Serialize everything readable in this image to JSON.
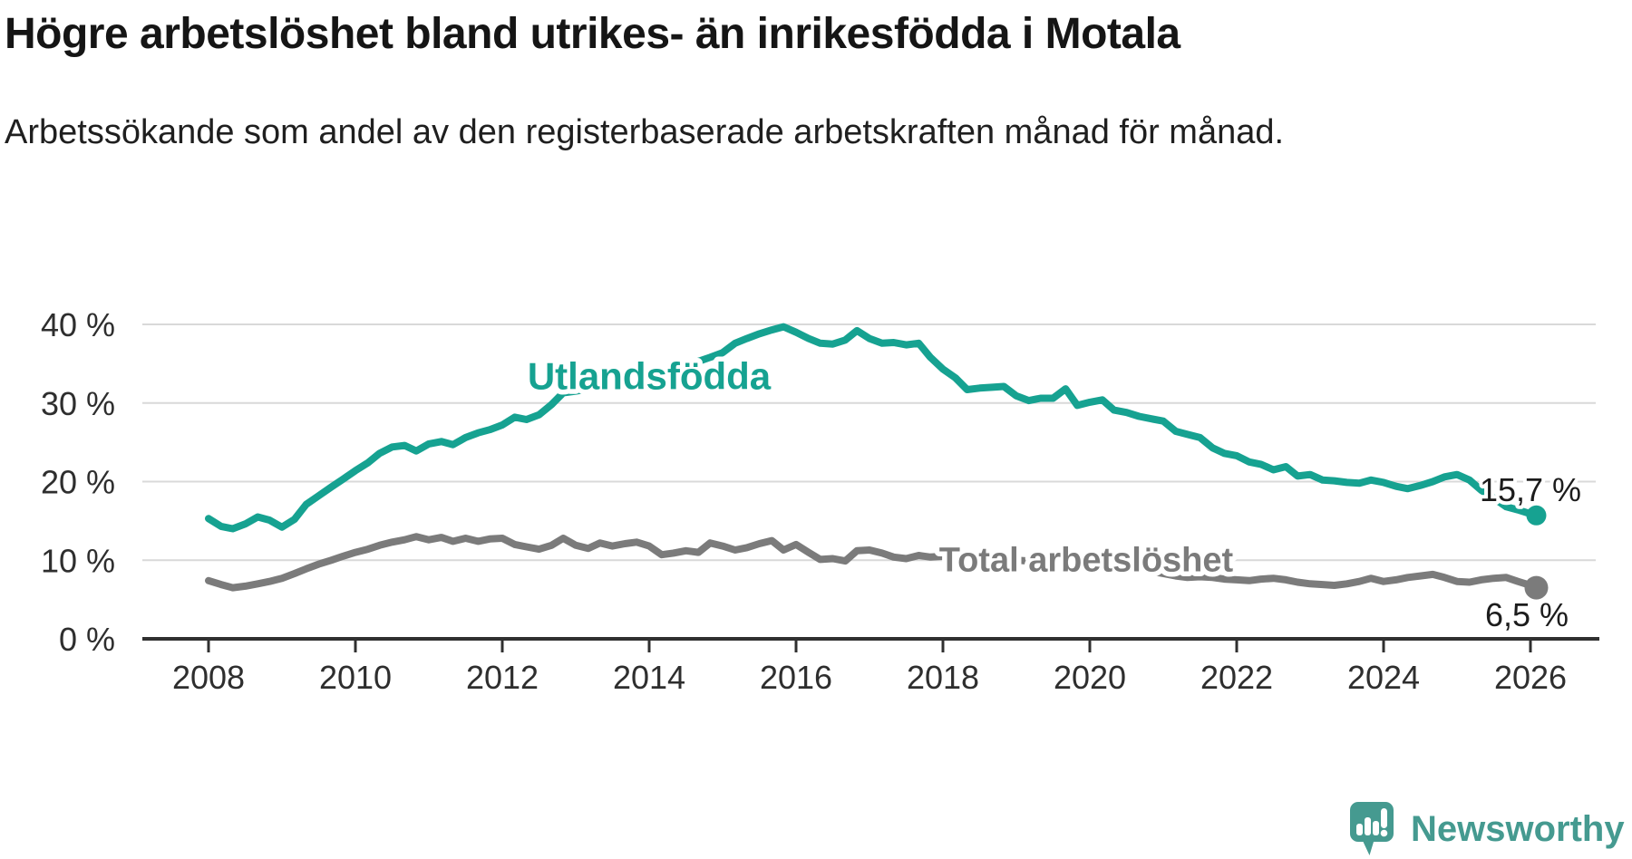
{
  "header": {
    "title": "Högre arbetslöshet bland utrikes- än inrikesfödda i Motala",
    "subtitle": "Arbetssökande som andel av den registerbaserade arbetskraften månad för månad."
  },
  "branding": {
    "logo_text": "Newsworthy",
    "logo_icon": "newsworthy-speech-bubble-bar-chart-icon",
    "logo_color": "#459a90"
  },
  "colors": {
    "background": "#ffffff",
    "title_text": "#151515",
    "axis_text": "#2e2e2e",
    "axis_line": "#303030",
    "gridline": "#d9d9d9",
    "series_foreign_born": "#16a291",
    "series_total": "#7b7b7b",
    "end_label_text": "#1c1c1c",
    "label_halo": "#ffffff"
  },
  "chart_data": {
    "type": "line",
    "title": "Högre arbetslöshet bland utrikes- än inrikesfödda i Motala",
    "subtitle": "Arbetssökande som andel av den registerbaserade arbetskraften månad för månad.",
    "grid": "horizontal",
    "legend_position": "inline-line-labels",
    "x_axis": {
      "ticks": [
        2008,
        2010,
        2012,
        2014,
        2016,
        2018,
        2020,
        2022,
        2024,
        2026
      ],
      "tick_labels": [
        "2008",
        "2010",
        "2012",
        "2014",
        "2016",
        "2018",
        "2020",
        "2022",
        "2024",
        "2026"
      ],
      "range": [
        2007.1,
        2026.9
      ]
    },
    "y_axis": {
      "tick_values": [
        0,
        10,
        20,
        30,
        40
      ],
      "tick_labels": [
        "0 %",
        "10 %",
        "20 %",
        "30 %",
        "40 %"
      ],
      "range": [
        0,
        40
      ],
      "unit": "%"
    },
    "series": [
      {
        "name": "Utlandsfödda",
        "color": "#16a291",
        "line_label": {
          "text": "Utlandsfödda",
          "x_year": 2014.0,
          "y_pct": 33.4
        },
        "end_label": {
          "text": "15,7 %",
          "value": 15.7
        },
        "points": [
          [
            2008.0,
            15.3
          ],
          [
            2008.17,
            14.3
          ],
          [
            2008.33,
            14.0
          ],
          [
            2008.5,
            14.6
          ],
          [
            2008.67,
            15.5
          ],
          [
            2008.83,
            15.1
          ],
          [
            2009.0,
            14.2
          ],
          [
            2009.17,
            15.2
          ],
          [
            2009.33,
            17.1
          ],
          [
            2009.5,
            18.2
          ],
          [
            2009.67,
            19.3
          ],
          [
            2009.83,
            20.3
          ],
          [
            2010.0,
            21.4
          ],
          [
            2010.17,
            22.4
          ],
          [
            2010.33,
            23.6
          ],
          [
            2010.5,
            24.4
          ],
          [
            2010.67,
            24.6
          ],
          [
            2010.83,
            23.9
          ],
          [
            2011.0,
            24.8
          ],
          [
            2011.17,
            25.1
          ],
          [
            2011.33,
            24.7
          ],
          [
            2011.5,
            25.6
          ],
          [
            2011.67,
            26.2
          ],
          [
            2011.83,
            26.6
          ],
          [
            2012.0,
            27.2
          ],
          [
            2012.17,
            28.2
          ],
          [
            2012.33,
            27.9
          ],
          [
            2012.5,
            28.5
          ],
          [
            2012.67,
            29.8
          ],
          [
            2012.83,
            31.3
          ],
          [
            2013.0,
            31.5
          ],
          [
            2013.17,
            31.8
          ],
          [
            2013.33,
            32.0
          ],
          [
            2013.5,
            32.4
          ],
          [
            2013.67,
            32.9
          ],
          [
            2013.83,
            33.3
          ],
          [
            2014.0,
            33.7
          ],
          [
            2014.17,
            34.0
          ],
          [
            2014.33,
            34.5
          ],
          [
            2014.5,
            34.9
          ],
          [
            2014.67,
            35.3
          ],
          [
            2014.83,
            35.8
          ],
          [
            2015.0,
            36.4
          ],
          [
            2015.17,
            37.6
          ],
          [
            2015.33,
            38.2
          ],
          [
            2015.5,
            38.8
          ],
          [
            2015.67,
            39.3
          ],
          [
            2015.83,
            39.7
          ],
          [
            2016.0,
            39.0
          ],
          [
            2016.17,
            38.2
          ],
          [
            2016.33,
            37.6
          ],
          [
            2016.5,
            37.5
          ],
          [
            2016.67,
            38.0
          ],
          [
            2016.83,
            39.2
          ],
          [
            2017.0,
            38.2
          ],
          [
            2017.17,
            37.6
          ],
          [
            2017.33,
            37.7
          ],
          [
            2017.5,
            37.4
          ],
          [
            2017.67,
            37.6
          ],
          [
            2017.83,
            35.8
          ],
          [
            2018.0,
            34.3
          ],
          [
            2018.17,
            33.2
          ],
          [
            2018.33,
            31.7
          ],
          [
            2018.5,
            31.9
          ],
          [
            2018.67,
            32.0
          ],
          [
            2018.83,
            32.1
          ],
          [
            2019.0,
            30.9
          ],
          [
            2019.17,
            30.3
          ],
          [
            2019.33,
            30.6
          ],
          [
            2019.5,
            30.6
          ],
          [
            2019.67,
            31.8
          ],
          [
            2019.83,
            29.7
          ],
          [
            2020.0,
            30.1
          ],
          [
            2020.17,
            30.4
          ],
          [
            2020.33,
            29.1
          ],
          [
            2020.5,
            28.8
          ],
          [
            2020.67,
            28.3
          ],
          [
            2020.83,
            28.0
          ],
          [
            2021.0,
            27.7
          ],
          [
            2021.17,
            26.4
          ],
          [
            2021.33,
            26.0
          ],
          [
            2021.5,
            25.6
          ],
          [
            2021.67,
            24.3
          ],
          [
            2021.83,
            23.6
          ],
          [
            2022.0,
            23.3
          ],
          [
            2022.17,
            22.5
          ],
          [
            2022.33,
            22.2
          ],
          [
            2022.5,
            21.5
          ],
          [
            2022.67,
            21.9
          ],
          [
            2022.83,
            20.7
          ],
          [
            2023.0,
            20.9
          ],
          [
            2023.17,
            20.2
          ],
          [
            2023.33,
            20.1
          ],
          [
            2023.5,
            19.9
          ],
          [
            2023.67,
            19.8
          ],
          [
            2023.83,
            20.2
          ],
          [
            2024.0,
            19.9
          ],
          [
            2024.17,
            19.4
          ],
          [
            2024.33,
            19.1
          ],
          [
            2024.5,
            19.5
          ],
          [
            2024.67,
            20.0
          ],
          [
            2024.83,
            20.6
          ],
          [
            2025.0,
            20.9
          ],
          [
            2025.17,
            20.2
          ],
          [
            2025.33,
            18.9
          ],
          [
            2025.5,
            17.9
          ],
          [
            2025.67,
            16.8
          ],
          [
            2025.83,
            16.4
          ],
          [
            2026.0,
            15.9
          ],
          [
            2026.08,
            15.7
          ]
        ]
      },
      {
        "name": "Total arbetslöshet",
        "color": "#7b7b7b",
        "line_label": {
          "text": "Total arbetslöshet",
          "x_year": 2019.95,
          "y_pct": 10.1
        },
        "end_label": {
          "text": "6,5 %",
          "value": 6.5
        },
        "points": [
          [
            2008.0,
            7.4
          ],
          [
            2008.17,
            6.9
          ],
          [
            2008.33,
            6.5
          ],
          [
            2008.5,
            6.7
          ],
          [
            2008.67,
            7.0
          ],
          [
            2008.83,
            7.3
          ],
          [
            2009.0,
            7.7
          ],
          [
            2009.17,
            8.3
          ],
          [
            2009.33,
            8.9
          ],
          [
            2009.5,
            9.5
          ],
          [
            2009.67,
            10.0
          ],
          [
            2009.83,
            10.5
          ],
          [
            2010.0,
            11.0
          ],
          [
            2010.17,
            11.4
          ],
          [
            2010.33,
            11.9
          ],
          [
            2010.5,
            12.3
          ],
          [
            2010.67,
            12.6
          ],
          [
            2010.83,
            13.0
          ],
          [
            2011.0,
            12.6
          ],
          [
            2011.17,
            12.9
          ],
          [
            2011.33,
            12.4
          ],
          [
            2011.5,
            12.8
          ],
          [
            2011.67,
            12.4
          ],
          [
            2011.83,
            12.7
          ],
          [
            2012.0,
            12.8
          ],
          [
            2012.17,
            12.0
          ],
          [
            2012.33,
            11.7
          ],
          [
            2012.5,
            11.4
          ],
          [
            2012.67,
            11.9
          ],
          [
            2012.83,
            12.8
          ],
          [
            2013.0,
            11.9
          ],
          [
            2013.17,
            11.5
          ],
          [
            2013.33,
            12.2
          ],
          [
            2013.5,
            11.8
          ],
          [
            2013.67,
            12.1
          ],
          [
            2013.83,
            12.3
          ],
          [
            2014.0,
            11.8
          ],
          [
            2014.17,
            10.7
          ],
          [
            2014.33,
            10.9
          ],
          [
            2014.5,
            11.2
          ],
          [
            2014.67,
            11.0
          ],
          [
            2014.83,
            12.2
          ],
          [
            2015.0,
            11.8
          ],
          [
            2015.17,
            11.3
          ],
          [
            2015.33,
            11.6
          ],
          [
            2015.5,
            12.1
          ],
          [
            2015.67,
            12.5
          ],
          [
            2015.83,
            11.3
          ],
          [
            2016.0,
            12.0
          ],
          [
            2016.17,
            11.0
          ],
          [
            2016.33,
            10.1
          ],
          [
            2016.5,
            10.2
          ],
          [
            2016.67,
            9.9
          ],
          [
            2016.83,
            11.2
          ],
          [
            2017.0,
            11.3
          ],
          [
            2017.17,
            10.9
          ],
          [
            2017.33,
            10.4
          ],
          [
            2017.5,
            10.2
          ],
          [
            2017.67,
            10.6
          ],
          [
            2017.83,
            10.4
          ],
          [
            2018.0,
            10.5
          ],
          [
            2018.17,
            10.6
          ],
          [
            2018.33,
            10.3
          ],
          [
            2018.5,
            10.2
          ],
          [
            2018.67,
            10.4
          ],
          [
            2018.83,
            10.2
          ],
          [
            2019.0,
            10.0
          ],
          [
            2019.17,
            9.9
          ],
          [
            2019.33,
            10.1
          ],
          [
            2019.5,
            9.8
          ],
          [
            2019.67,
            9.6
          ],
          [
            2019.83,
            9.7
          ],
          [
            2020.0,
            9.8
          ],
          [
            2020.17,
            10.0
          ],
          [
            2020.33,
            9.6
          ],
          [
            2020.5,
            9.3
          ],
          [
            2020.67,
            8.9
          ],
          [
            2020.83,
            8.6
          ],
          [
            2021.0,
            8.3
          ],
          [
            2021.17,
            8.0
          ],
          [
            2021.33,
            7.8
          ],
          [
            2021.5,
            7.9
          ],
          [
            2021.67,
            7.8
          ],
          [
            2021.83,
            7.6
          ],
          [
            2022.0,
            7.5
          ],
          [
            2022.17,
            7.4
          ],
          [
            2022.33,
            7.6
          ],
          [
            2022.5,
            7.7
          ],
          [
            2022.67,
            7.5
          ],
          [
            2022.83,
            7.2
          ],
          [
            2023.0,
            7.0
          ],
          [
            2023.17,
            6.9
          ],
          [
            2023.33,
            6.8
          ],
          [
            2023.5,
            7.0
          ],
          [
            2023.67,
            7.3
          ],
          [
            2023.83,
            7.7
          ],
          [
            2024.0,
            7.3
          ],
          [
            2024.17,
            7.5
          ],
          [
            2024.33,
            7.8
          ],
          [
            2024.5,
            8.0
          ],
          [
            2024.67,
            8.2
          ],
          [
            2024.83,
            7.8
          ],
          [
            2025.0,
            7.3
          ],
          [
            2025.17,
            7.2
          ],
          [
            2025.33,
            7.5
          ],
          [
            2025.5,
            7.7
          ],
          [
            2025.67,
            7.8
          ],
          [
            2025.83,
            7.3
          ],
          [
            2026.0,
            6.8
          ],
          [
            2026.08,
            6.5
          ]
        ]
      }
    ]
  }
}
